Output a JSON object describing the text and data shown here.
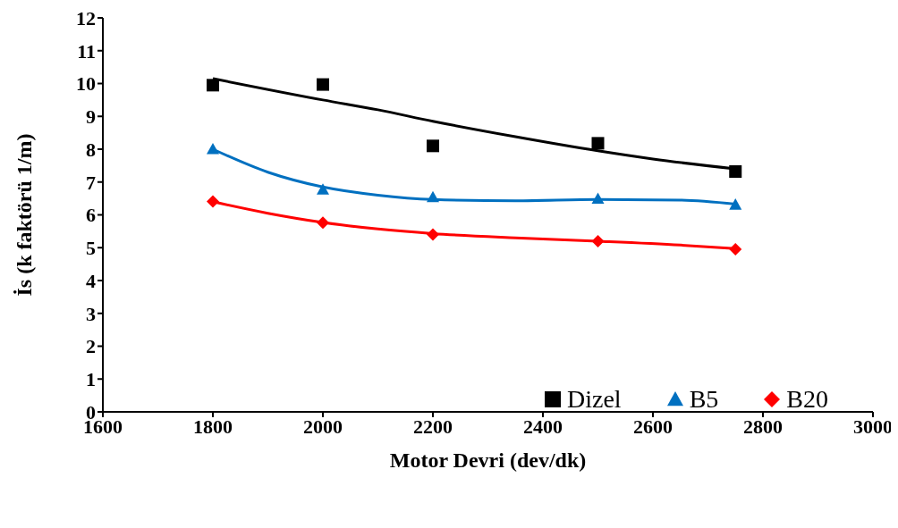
{
  "chart_data": {
    "type": "scatter",
    "xlabel": "Motor Devri (dev/dk)",
    "ylabel": "İs (k faktörü 1/m)",
    "xlim": [
      1600,
      3000
    ],
    "xticks": [
      1600,
      1800,
      2000,
      2200,
      2400,
      2600,
      2800,
      3000
    ],
    "ylim": [
      0,
      12
    ],
    "yticks": [
      0,
      1,
      2,
      3,
      4,
      5,
      6,
      7,
      8,
      9,
      10,
      11,
      12
    ],
    "grid": false,
    "legend": "bottom right",
    "series": [
      {
        "name": "Dizel",
        "marker": "square",
        "color": "#000000",
        "x": [
          1800,
          2000,
          2200,
          2500,
          2750
        ],
        "values": [
          9.95,
          9.97,
          8.1,
          8.18,
          7.32
        ]
      },
      {
        "name": "B5",
        "marker": "triangle",
        "color": "#0070c0",
        "x": [
          1800,
          2000,
          2200,
          2500,
          2750
        ],
        "values": [
          8.0,
          6.77,
          6.54,
          6.49,
          6.31
        ]
      },
      {
        "name": "B20",
        "marker": "diamond",
        "color": "#ff0000",
        "x": [
          1800,
          2000,
          2200,
          2500,
          2750
        ],
        "values": [
          6.41,
          5.76,
          5.4,
          5.2,
          4.95
        ]
      },
      {
        "type": "line",
        "color": "#000000",
        "x": [
          1800,
          2000,
          2100,
          2200,
          2350,
          2500,
          2600,
          2750
        ],
        "values": [
          10.15,
          9.5,
          9.2,
          8.85,
          8.38,
          7.95,
          7.7,
          7.4
        ]
      },
      {
        "type": "line",
        "color": "#0070c0",
        "x": [
          1800,
          1900,
          2000,
          2100,
          2200,
          2350,
          2500,
          2650,
          2750
        ],
        "values": [
          8.0,
          7.3,
          6.85,
          6.6,
          6.47,
          6.43,
          6.47,
          6.45,
          6.33
        ]
      },
      {
        "type": "line",
        "color": "#ff0000",
        "x": [
          1800,
          1900,
          2000,
          2100,
          2200,
          2350,
          2500,
          2650,
          2750
        ],
        "values": [
          6.4,
          6.05,
          5.77,
          5.57,
          5.43,
          5.3,
          5.2,
          5.08,
          4.97
        ]
      }
    ]
  }
}
